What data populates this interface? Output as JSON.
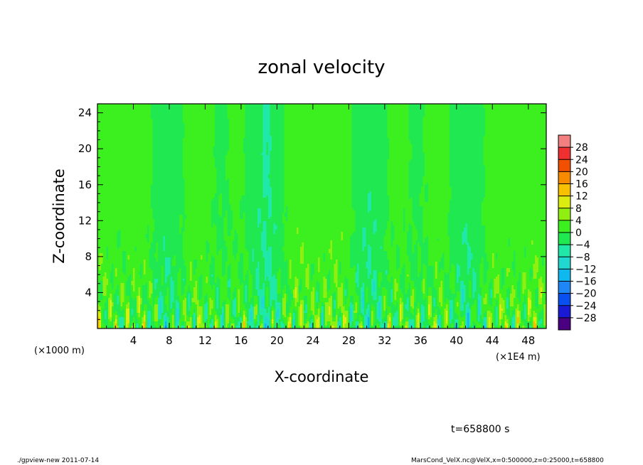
{
  "chart_data": {
    "type": "heatmap",
    "title": "zonal velocity",
    "xlabel": "X-coordinate",
    "ylabel": "Z-coordinate",
    "x_unit_label": "(×1E4 m)",
    "y_unit_label": "(×1000 m)",
    "xlim": [
      0,
      50
    ],
    "ylim": [
      0,
      25
    ],
    "x_ticks": [
      "4",
      "8",
      "12",
      "16",
      "20",
      "24",
      "28",
      "32",
      "36",
      "40",
      "44",
      "48"
    ],
    "y_ticks": [
      "4",
      "8",
      "12",
      "16",
      "20",
      "24"
    ],
    "colorbar_levels": [
      -32,
      -28,
      -24,
      -20,
      -16,
      -12,
      -8,
      -4,
      0,
      4,
      8,
      12,
      16,
      20,
      24,
      28,
      32
    ],
    "colorbar_labels": [
      "28",
      "24",
      "20",
      "16",
      "12",
      "8",
      "4",
      "0",
      "−4",
      "−8",
      "−12",
      "−16",
      "−20",
      "−24",
      "−28"
    ],
    "colorbar_colors": [
      "#4b0082",
      "#1a1ad6",
      "#0a4ff0",
      "#1f86f5",
      "#10b8f0",
      "#20d8d0",
      "#20e8a8",
      "#20e850",
      "#3cf020",
      "#90ee10",
      "#dcec10",
      "#f7c000",
      "#f88a00",
      "#f05000",
      "#f03030",
      "#f28080"
    ],
    "time_label": "t=658800 s"
  },
  "footer": {
    "left": "./gpview-new   2011-07-14",
    "right": "MarsCond_VelX.nc@VelX,x=0:500000,z=0:25000,t=658800"
  }
}
